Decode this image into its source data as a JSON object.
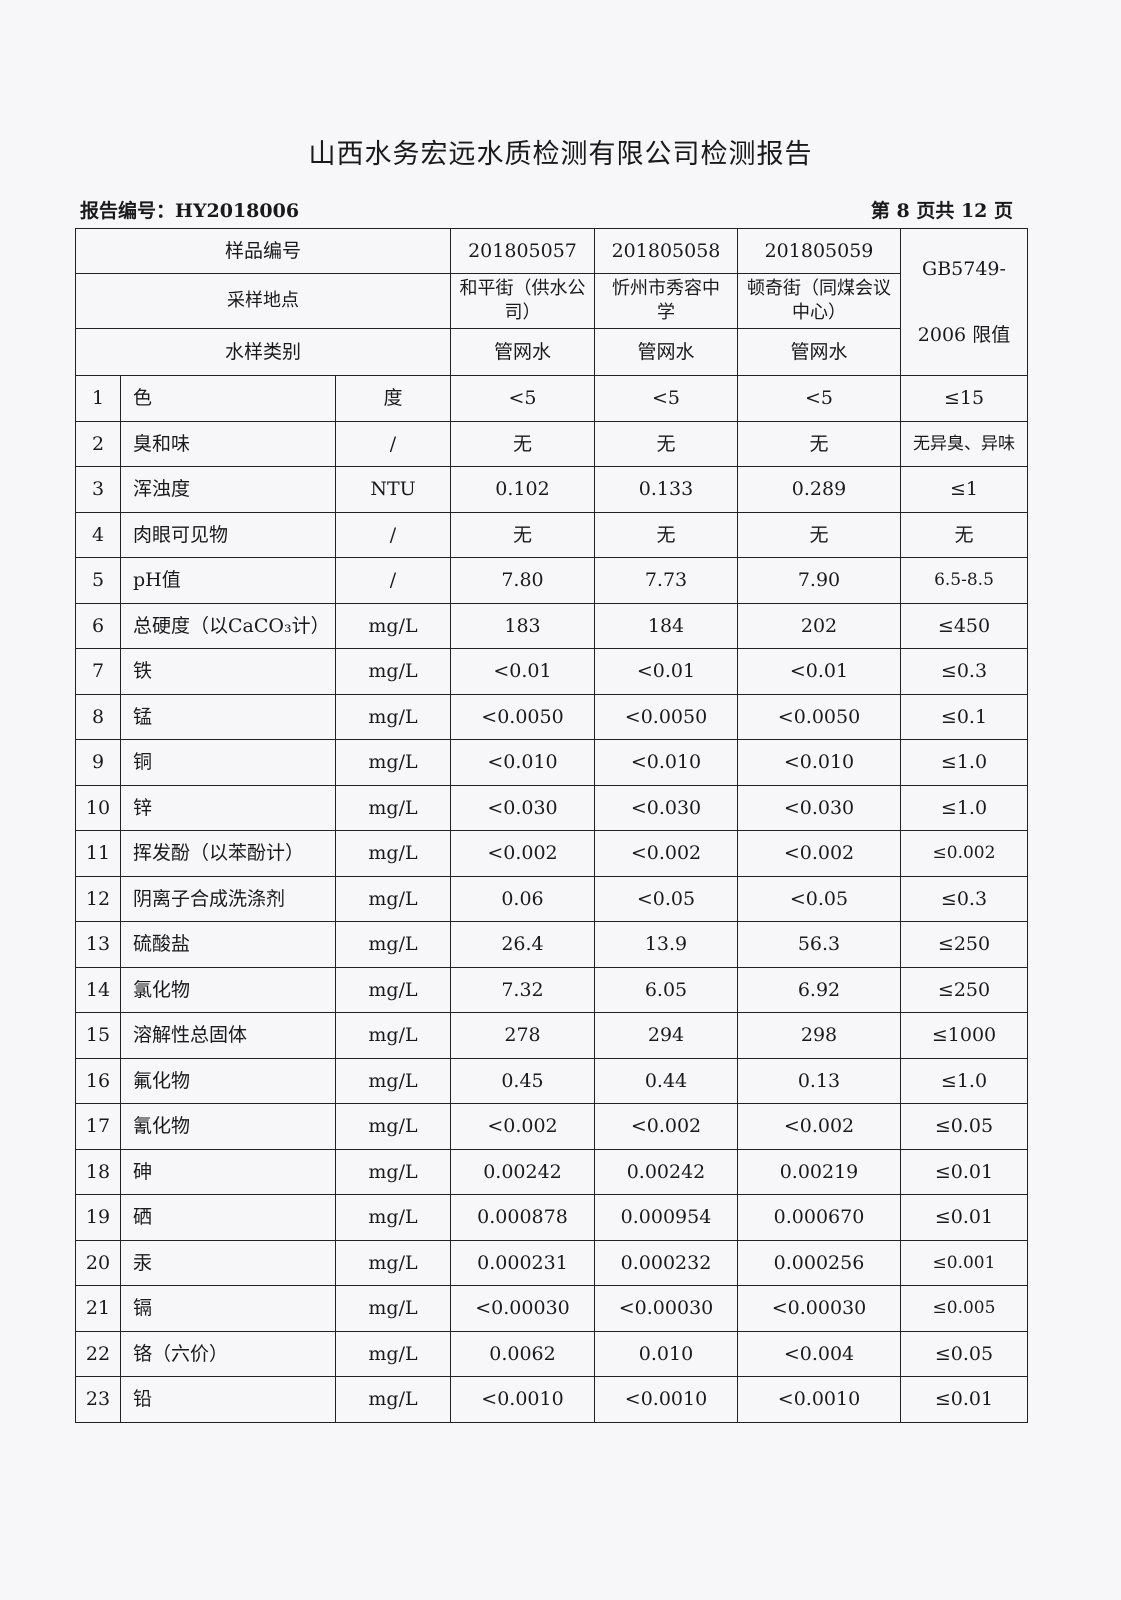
{
  "title": "山西水务宏远水质检测有限公司检测报告",
  "report_no": "报告编号：HY2018006",
  "page_info": "第 8 页共 12 页",
  "header": {
    "sample_no_label": "样品编号",
    "location_label": "采样地点",
    "type_label": "水样类别",
    "limit_label_1": "GB5749-",
    "limit_label_2": "2006 限值",
    "samples": [
      {
        "no": "201805057",
        "location": "和平街（供水公司）",
        "type": "管网水"
      },
      {
        "no": "201805058",
        "location": "忻州市秀容中学",
        "type": "管网水"
      },
      {
        "no": "201805059",
        "location": "顿奇街（同煤会议中心）",
        "type": "管网水"
      }
    ]
  },
  "rows": [
    {
      "idx": "1",
      "name": "色",
      "unit": "度",
      "v1": "<5",
      "v2": "<5",
      "v3": "<5",
      "limit": "≤15"
    },
    {
      "idx": "2",
      "name": "臭和味",
      "unit": "/",
      "v1": "无",
      "v2": "无",
      "v3": "无",
      "limit": "无异臭、异味"
    },
    {
      "idx": "3",
      "name": "浑浊度",
      "unit": "NTU",
      "v1": "0.102",
      "v2": "0.133",
      "v3": "0.289",
      "limit": "≤1"
    },
    {
      "idx": "4",
      "name": "肉眼可见物",
      "unit": "/",
      "v1": "无",
      "v2": "无",
      "v3": "无",
      "limit": "无"
    },
    {
      "idx": "5",
      "name": "pH值",
      "unit": "/",
      "v1": "7.80",
      "v2": "7.73",
      "v3": "7.90",
      "limit": "6.5-8.5"
    },
    {
      "idx": "6",
      "name": "总硬度（以CaCO₃计）",
      "unit": "mg/L",
      "v1": "183",
      "v2": "184",
      "v3": "202",
      "limit": "≤450"
    },
    {
      "idx": "7",
      "name": "铁",
      "unit": "mg/L",
      "v1": "<0.01",
      "v2": "<0.01",
      "v3": "<0.01",
      "limit": "≤0.3"
    },
    {
      "idx": "8",
      "name": "锰",
      "unit": "mg/L",
      "v1": "<0.0050",
      "v2": "<0.0050",
      "v3": "<0.0050",
      "limit": "≤0.1"
    },
    {
      "idx": "9",
      "name": "铜",
      "unit": "mg/L",
      "v1": "<0.010",
      "v2": "<0.010",
      "v3": "<0.010",
      "limit": "≤1.0"
    },
    {
      "idx": "10",
      "name": "锌",
      "unit": "mg/L",
      "v1": "<0.030",
      "v2": "<0.030",
      "v3": "<0.030",
      "limit": "≤1.0"
    },
    {
      "idx": "11",
      "name": "挥发酚（以苯酚计）",
      "unit": "mg/L",
      "v1": "<0.002",
      "v2": "<0.002",
      "v3": "<0.002",
      "limit": "≤0.002"
    },
    {
      "idx": "12",
      "name": "阴离子合成洗涤剂",
      "unit": "mg/L",
      "v1": "0.06",
      "v2": "<0.05",
      "v3": "<0.05",
      "limit": "≤0.3"
    },
    {
      "idx": "13",
      "name": "硫酸盐",
      "unit": "mg/L",
      "v1": "26.4",
      "v2": "13.9",
      "v3": "56.3",
      "limit": "≤250"
    },
    {
      "idx": "14",
      "name": "氯化物",
      "unit": "mg/L",
      "v1": "7.32",
      "v2": "6.05",
      "v3": "6.92",
      "limit": "≤250"
    },
    {
      "idx": "15",
      "name": "溶解性总固体",
      "unit": "mg/L",
      "v1": "278",
      "v2": "294",
      "v3": "298",
      "limit": "≤1000"
    },
    {
      "idx": "16",
      "name": "氟化物",
      "unit": "mg/L",
      "v1": "0.45",
      "v2": "0.44",
      "v3": "0.13",
      "limit": "≤1.0"
    },
    {
      "idx": "17",
      "name": "氰化物",
      "unit": "mg/L",
      "v1": "<0.002",
      "v2": "<0.002",
      "v3": "<0.002",
      "limit": "≤0.05"
    },
    {
      "idx": "18",
      "name": "砷",
      "unit": "mg/L",
      "v1": "0.00242",
      "v2": "0.00242",
      "v3": "0.00219",
      "limit": "≤0.01"
    },
    {
      "idx": "19",
      "name": "硒",
      "unit": "mg/L",
      "v1": "0.000878",
      "v2": "0.000954",
      "v3": "0.000670",
      "limit": "≤0.01"
    },
    {
      "idx": "20",
      "name": "汞",
      "unit": "mg/L",
      "v1": "0.000231",
      "v2": "0.000232",
      "v3": "0.000256",
      "limit": "≤0.001"
    },
    {
      "idx": "21",
      "name": "镉",
      "unit": "mg/L",
      "v1": "<0.00030",
      "v2": "<0.00030",
      "v3": "<0.00030",
      "limit": "≤0.005"
    },
    {
      "idx": "22",
      "name": "铬（六价）",
      "unit": "mg/L",
      "v1": "0.0062",
      "v2": "0.010",
      "v3": "<0.004",
      "limit": "≤0.05"
    },
    {
      "idx": "23",
      "name": "铅",
      "unit": "mg/L",
      "v1": "<0.0010",
      "v2": "<0.0010",
      "v3": "<0.0010",
      "limit": "≤0.01"
    }
  ]
}
